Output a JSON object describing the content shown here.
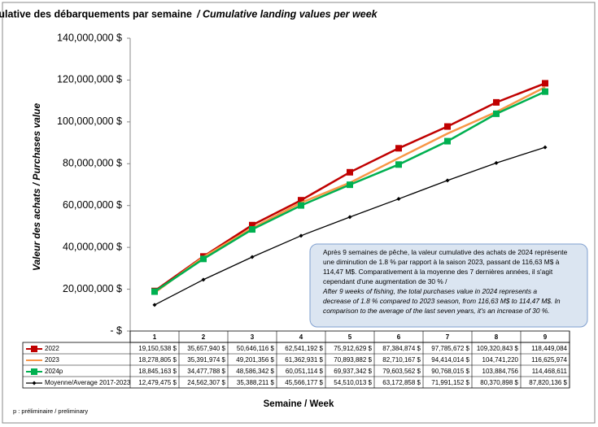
{
  "chart_data": {
    "type": "line",
    "title": "Valeur cumulative des débarquements par semaine",
    "subtitle": "/ Cumulative landing values per week",
    "y_label": "Valeur des achats / Purchases value",
    "x_label": "Semaine / Week",
    "footnote": "p : préliminaire / preliminary",
    "categories": [
      "1",
      "2",
      "3",
      "4",
      "5",
      "6",
      "7",
      "8",
      "9"
    ],
    "ylim": [
      0,
      140000000
    ],
    "yticks": [
      {
        "value": 0,
        "label": "-  $"
      },
      {
        "value": 20000000,
        "label": "20,000,000 $"
      },
      {
        "value": 40000000,
        "label": "40,000,000 $"
      },
      {
        "value": 60000000,
        "label": "60,000,000 $"
      },
      {
        "value": 80000000,
        "label": "80,000,000 $"
      },
      {
        "value": 100000000,
        "label": "100,000,000 $"
      },
      {
        "value": 120000000,
        "label": "120,000,000 $"
      },
      {
        "value": 140000000,
        "label": "140,000,000 $"
      }
    ],
    "grid": false,
    "series": [
      {
        "name": "2022",
        "color": "#c00000",
        "marker": "square",
        "values": [
          19150538,
          35657940,
          50646116,
          62541192,
          75912629,
          87384874,
          97785672,
          109320843,
          118449084
        ],
        "value_labels": [
          "19,150,538 $",
          "35,657,940 $",
          "50,646,116 $",
          "62,541,192 $",
          "75,912,629 $",
          "87,384,874 $",
          "97,785,672 $",
          "109,320,843 $",
          "118,449,084"
        ]
      },
      {
        "name": "2023",
        "color": "#f79646",
        "marker": "none",
        "values": [
          18278805,
          35391974,
          49201356,
          61362931,
          70893882,
          82710167,
          94414014,
          104741220,
          116625974
        ],
        "value_labels": [
          "18,278,805 $",
          "35,391,974 $",
          "49,201,356 $",
          "61,362,931 $",
          "70,893,882 $",
          "82,710,167 $",
          "94,414,014 $",
          "104,741,220",
          "116,625,974"
        ]
      },
      {
        "name": "2024p",
        "color": "#00b050",
        "marker": "square",
        "values": [
          18845163,
          34477788,
          48586342,
          60051114,
          69937342,
          79603562,
          90768015,
          103884756,
          114468611
        ],
        "value_labels": [
          "18,845,163 $",
          "34,477,788 $",
          "48,586,342 $",
          "60,051,114 $",
          "69,937,342 $",
          "79,603,562 $",
          "90,768,015 $",
          "103,884,756",
          "114,468,611"
        ]
      },
      {
        "name": "Moyenne/Average 2017-2023",
        "color": "#000000",
        "marker": "diamond",
        "values": [
          12479475,
          24562307,
          35388211,
          45566177,
          54510013,
          63172858,
          71991152,
          80370898,
          87820136
        ],
        "value_labels": [
          "12,479,475 $",
          "24,562,307 $",
          "35,388,211 $",
          "45,566,177 $",
          "54,510,013 $",
          "63,172,858 $",
          "71,991,152 $",
          "80,370,898 $",
          "87,820,136 $"
        ]
      }
    ],
    "annotation_fr": [
      "Après 9 semaines de pêche, la valeur cumulative des achats de 2024 représente",
      "une diminution de 1.8 % par rapport à la saison 2023,  passant de 116,63 M$ à",
      "114,47 M$. Comparativement à la moyenne des 7 dernières années, il s'agit",
      "cependant d'une augmentation de 30 % /"
    ],
    "annotation_en": [
      "After 9 weeks of fishing, the total purchases value in 2024 represents a",
      "decrease of 1.8 % compared to 2023 season, from 116,63 M$ to 114,47 M$. In",
      "comparison to the average of the last seven years, it's an increase of 30 %."
    ]
  }
}
